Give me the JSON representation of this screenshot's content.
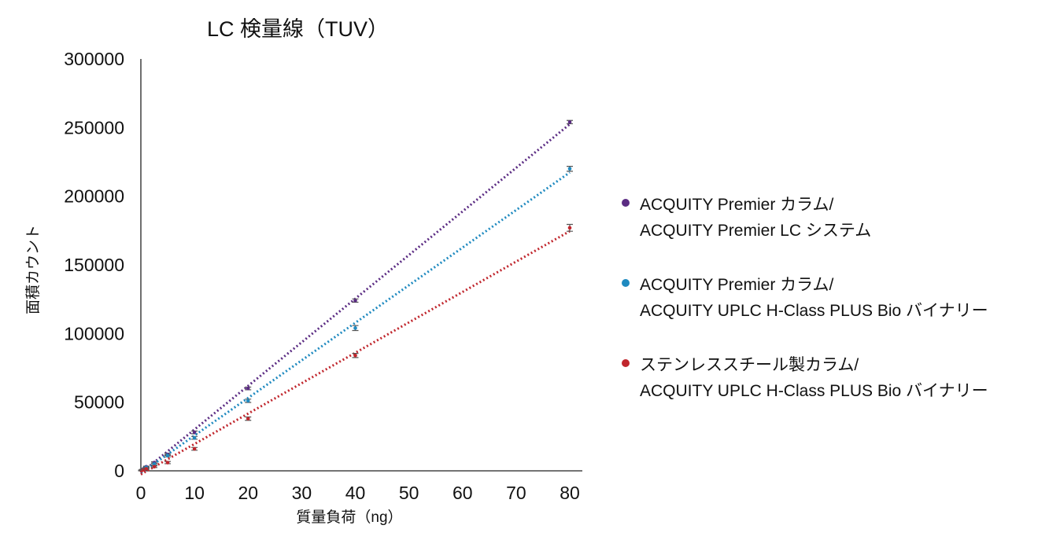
{
  "chart_data": {
    "type": "scatter",
    "title": "LC 検量線（TUV）",
    "xlabel": "質量負荷（ng）",
    "ylabel": "面積カウント",
    "xlim": [
      0,
      80
    ],
    "ylim": [
      0,
      300000
    ],
    "xticks": [
      "0",
      "10",
      "20",
      "30",
      "40",
      "50",
      "60",
      "70",
      "80"
    ],
    "yticks": [
      "0",
      "50000",
      "100000",
      "150000",
      "200000",
      "250000",
      "300000"
    ],
    "grid": false,
    "legend_position": "right",
    "trendline": "dotted linear",
    "series": [
      {
        "legend_lines": [
          "ACQUITY Premier カラム/",
          "ACQUITY Premier LC システム"
        ],
        "color": "#5b2c83",
        "x": [
          0.1,
          0.25,
          0.5,
          1,
          2.5,
          5,
          10,
          20,
          40,
          80
        ],
        "y": [
          300,
          800,
          1500,
          3000,
          6000,
          12000,
          28000,
          60000,
          124000,
          254000
        ],
        "error": [
          200,
          200,
          300,
          400,
          600,
          800,
          1000,
          1000,
          1200,
          1200
        ]
      },
      {
        "legend_lines": [
          "ACQUITY Premier カラム/",
          "ACQUITY UPLC H-Class PLUS Bio バイナリー"
        ],
        "color": "#1f8ac0",
        "x": [
          0.1,
          0.25,
          0.5,
          1,
          2.5,
          5,
          10,
          20,
          40,
          80
        ],
        "y": [
          250,
          650,
          1200,
          2500,
          5000,
          11000,
          24000,
          51000,
          104000,
          220000
        ],
        "error": [
          200,
          200,
          300,
          400,
          600,
          800,
          1000,
          1200,
          1800,
          1800
        ]
      },
      {
        "legend_lines": [
          "ステンレススチール製カラム/",
          "ACQUITY UPLC H-Class PLUS Bio バイナリー"
        ],
        "color": "#c0262d",
        "x": [
          0.1,
          0.25,
          0.5,
          1,
          2.5,
          5,
          10,
          20,
          40,
          80
        ],
        "y": [
          150,
          400,
          800,
          1500,
          3000,
          6000,
          16000,
          38000,
          84000,
          177000
        ],
        "error": [
          200,
          200,
          300,
          400,
          600,
          800,
          1000,
          1200,
          1500,
          2500
        ]
      }
    ]
  }
}
